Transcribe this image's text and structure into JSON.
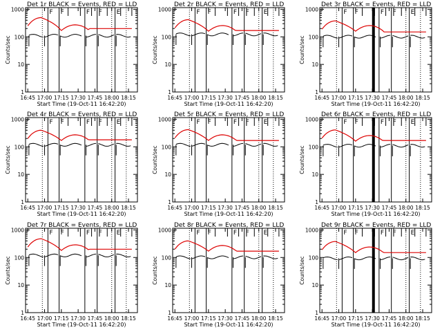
{
  "chart_data": {
    "type": "line",
    "shared": {
      "ylabel": "Counts/sec",
      "xlabel": "Start Time (19-Oct-11 16:42:20)",
      "x_ticks": [
        "16:45",
        "17:00",
        "17:15",
        "17:30",
        "17:45",
        "18:00",
        "18:15"
      ],
      "y_ticks": [
        "1",
        "10",
        "100",
        "1000"
      ],
      "xlim_minutes": [
        -2,
        98
      ],
      "ylim_log10": [
        0,
        3.06
      ],
      "series_names": [
        "Events",
        "LLD"
      ],
      "colors": {
        "events": "#000000",
        "lld": "#dd0000",
        "axes": "#000000"
      },
      "dotted_lines_minutes": [
        13,
        75,
        88
      ],
      "e_markers_minutes": [
        -2,
        36,
        47,
        57,
        64,
        71,
        83,
        93
      ],
      "vertical_markers": [
        {
          "minute": 18,
          "label": "F"
        },
        {
          "minute": 28,
          "label": "F"
        },
        {
          "minute": 51,
          "label": "F"
        },
        {
          "minute": 62,
          "label": "F"
        },
        {
          "minute": 78,
          "label": "E"
        }
      ]
    },
    "panels": [
      {
        "title": "Det 1r BLACK = Events, RED = LLD",
        "events_level": 130,
        "lld_peak": 500,
        "lld_mid": 170,
        "lld_end": 200,
        "thick": false
      },
      {
        "title": "Det 2r BLACK = Events, RED = LLD",
        "events_level": 145,
        "lld_peak": 420,
        "lld_mid": 160,
        "lld_end": 170,
        "thick": false
      },
      {
        "title": "Det 3r BLACK = Events, RED = LLD",
        "events_level": 120,
        "lld_peak": 380,
        "lld_mid": 160,
        "lld_end": 150,
        "thick": true
      },
      {
        "title": "Det 4r BLACK = Events, RED = LLD",
        "events_level": 140,
        "lld_peak": 400,
        "lld_mid": 170,
        "lld_end": 180,
        "thick": false
      },
      {
        "title": "Det 5r BLACK = Events, RED = LLD",
        "events_level": 140,
        "lld_peak": 420,
        "lld_mid": 170,
        "lld_end": 170,
        "thick": false
      },
      {
        "title": "Det 6r BLACK = Events, RED = LLD",
        "events_level": 130,
        "lld_peak": 410,
        "lld_mid": 160,
        "lld_end": 170,
        "thick": true
      },
      {
        "title": "Det 7r BLACK = Events, RED = LLD",
        "events_level": 140,
        "lld_peak": 480,
        "lld_mid": 180,
        "lld_end": 200,
        "thick": false
      },
      {
        "title": "Det 8r BLACK = Events, RED = LLD",
        "events_level": 120,
        "lld_peak": 400,
        "lld_mid": 170,
        "lld_end": 170,
        "thick": false
      },
      {
        "title": "Det 9r BLACK = Events, RED = LLD",
        "events_level": 110,
        "lld_peak": 380,
        "lld_mid": 150,
        "lld_end": 150,
        "thick": true
      }
    ]
  }
}
